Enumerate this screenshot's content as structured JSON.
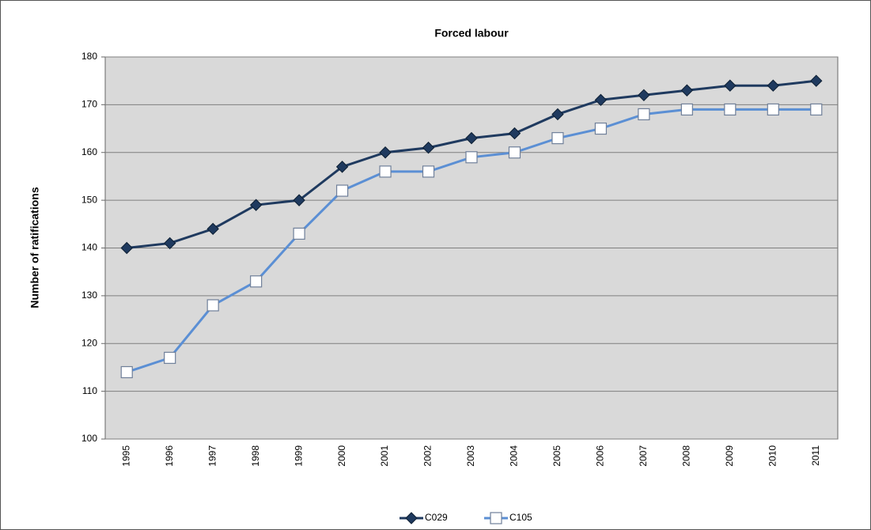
{
  "chart_data": {
    "type": "line",
    "title": "Forced labour",
    "y_label": "Number of ratifications",
    "categories": [
      "1995",
      "1996",
      "1997",
      "1998",
      "1999",
      "2000",
      "2001",
      "2002",
      "2003",
      "2004",
      "2005",
      "2006",
      "2007",
      "2008",
      "2009",
      "2010",
      "2011"
    ],
    "series": [
      {
        "name": "C029",
        "color": "#1f3a5f",
        "marker": "diamond",
        "values": [
          140,
          141,
          144,
          149,
          150,
          157,
          160,
          161,
          163,
          164,
          168,
          171,
          172,
          173,
          174,
          174,
          175
        ]
      },
      {
        "name": "C105",
        "color": "#5b8fd4",
        "marker": "square",
        "values": [
          114,
          117,
          128,
          133,
          143,
          152,
          156,
          156,
          159,
          160,
          163,
          165,
          168,
          169,
          169,
          169,
          169
        ]
      }
    ],
    "ylim": [
      100,
      180
    ],
    "yticks": [
      100,
      110,
      120,
      130,
      140,
      150,
      160,
      170,
      180
    ],
    "grid": true,
    "legend": "bottom"
  }
}
